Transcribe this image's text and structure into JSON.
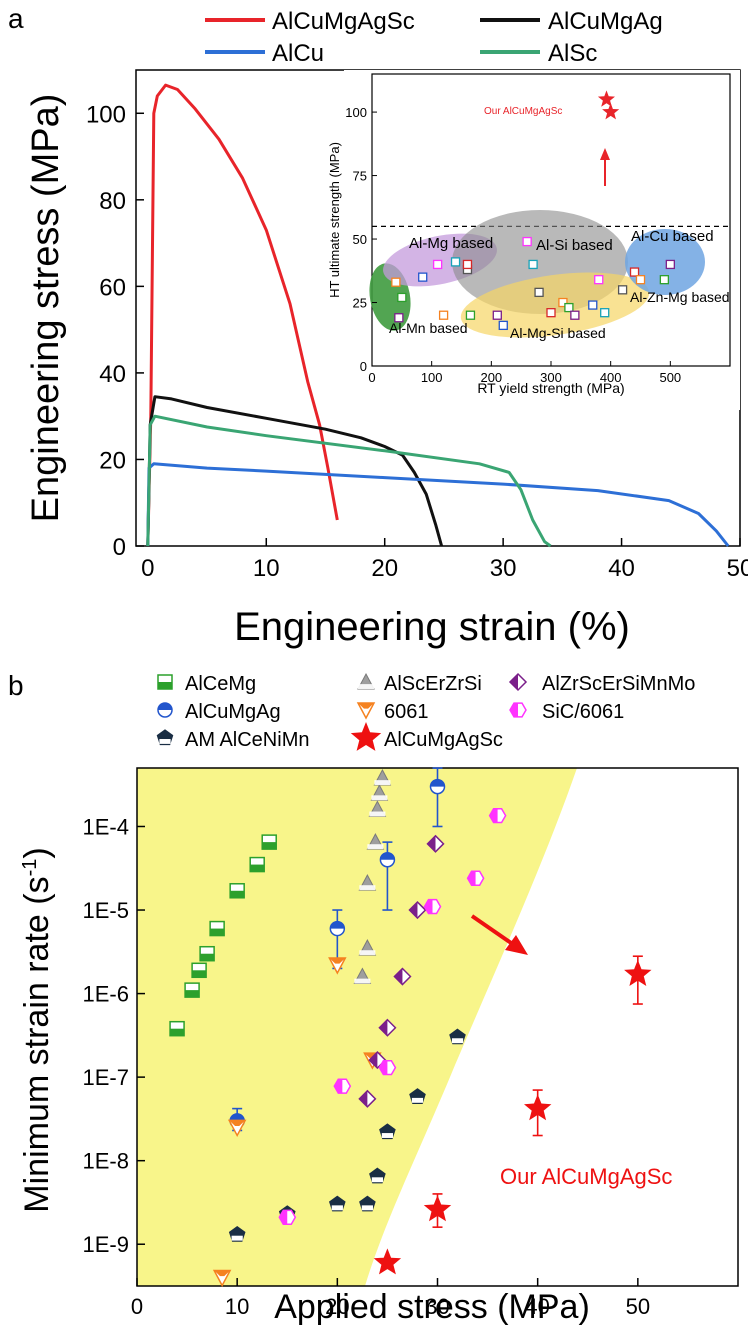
{
  "chart_data": [
    {
      "panel_label": "a",
      "type": "line",
      "xlabel": "Engineering strain (%)",
      "ylabel": "Engineering stress (MPa)",
      "xlim": [
        -1,
        50
      ],
      "ylim": [
        0,
        110
      ],
      "xticks": [
        "0",
        "10",
        "20",
        "30",
        "40",
        "50"
      ],
      "yticks": [
        "0",
        "20",
        "40",
        "60",
        "80",
        "100"
      ],
      "legend_position": "top",
      "series": [
        {
          "name": "AlCuMgAgSc",
          "color": "#e8242a",
          "points": [
            [
              0,
              0
            ],
            [
              0.25,
              30
            ],
            [
              0.5,
              100
            ],
            [
              0.8,
              104
            ],
            [
              1.5,
              106.5
            ],
            [
              2.5,
              105.5
            ],
            [
              4,
              101
            ],
            [
              6,
              94
            ],
            [
              8,
              85
            ],
            [
              10,
              73
            ],
            [
              12,
              56
            ],
            [
              13.5,
              38
            ],
            [
              14.5,
              28
            ],
            [
              15.2,
              18
            ],
            [
              16,
              6
            ]
          ]
        },
        {
          "name": "AlCuMgAg",
          "color": "#111111",
          "points": [
            [
              0,
              0
            ],
            [
              0.2,
              28
            ],
            [
              0.6,
              34.5
            ],
            [
              2,
              34
            ],
            [
              5,
              32
            ],
            [
              10,
              29.5
            ],
            [
              15,
              27
            ],
            [
              18,
              25
            ],
            [
              20,
              23
            ],
            [
              21.5,
              21
            ],
            [
              22.5,
              17
            ],
            [
              23.5,
              12
            ],
            [
              24.3,
              5
            ],
            [
              24.8,
              0
            ]
          ]
        },
        {
          "name": "AlCu",
          "color": "#2d6fd6",
          "points": [
            [
              0,
              0
            ],
            [
              0.1,
              18
            ],
            [
              0.5,
              19
            ],
            [
              5,
              18
            ],
            [
              10,
              17.3
            ],
            [
              20,
              15.8
            ],
            [
              30,
              14.3
            ],
            [
              38,
              12.8
            ],
            [
              44,
              10.5
            ],
            [
              46.5,
              7.5
            ],
            [
              48,
              3.5
            ],
            [
              49,
              0
            ]
          ]
        },
        {
          "name": "AlSc",
          "color": "#3aa573",
          "points": [
            [
              0,
              0
            ],
            [
              0.2,
              28
            ],
            [
              0.6,
              30
            ],
            [
              5,
              27.5
            ],
            [
              10,
              25.5
            ],
            [
              20,
              22
            ],
            [
              28,
              19
            ],
            [
              30.5,
              17
            ],
            [
              31.5,
              13
            ],
            [
              32.5,
              6
            ],
            [
              33.5,
              1
            ],
            [
              34,
              0
            ]
          ]
        }
      ]
    },
    {
      "panel_label": "inset",
      "type": "scatter",
      "xlabel": "RT yield strength (MPa)",
      "ylabel": "HT ultimate strength (MPa)",
      "xlim": [
        0,
        600
      ],
      "ylim": [
        0,
        115
      ],
      "xticks": [
        "0",
        "100",
        "200",
        "300",
        "400",
        "500"
      ],
      "yticks": [
        "0",
        "25",
        "50",
        "75",
        "100"
      ],
      "dashed_line_y": 55,
      "highlight_label": "Our AlCuMgAgSc",
      "highlight_points": [
        [
          393,
          105
        ],
        [
          400,
          100
        ]
      ],
      "group_labels": [
        "Al-Mg based",
        "Al-Si based",
        "Al-Cu based",
        "Al-Zn-Mg based",
        "Al-Mn based",
        "Al-Mg-Si based"
      ],
      "points": [
        [
          40,
          33
        ],
        [
          50,
          27
        ],
        [
          45,
          19
        ],
        [
          85,
          35
        ],
        [
          110,
          40
        ],
        [
          140,
          41
        ],
        [
          160,
          38
        ],
        [
          160,
          40
        ],
        [
          120,
          20
        ],
        [
          165,
          20
        ],
        [
          210,
          20
        ],
        [
          220,
          16
        ],
        [
          260,
          49
        ],
        [
          270,
          40
        ],
        [
          280,
          29
        ],
        [
          300,
          21
        ],
        [
          320,
          25
        ],
        [
          330,
          23
        ],
        [
          340,
          20
        ],
        [
          370,
          24
        ],
        [
          380,
          34
        ],
        [
          390,
          21
        ],
        [
          420,
          30
        ],
        [
          440,
          37
        ],
        [
          450,
          34
        ],
        [
          490,
          34
        ],
        [
          500,
          40
        ]
      ]
    },
    {
      "panel_label": "b",
      "type": "scatter",
      "xlabel": "Applied stress (MPa)",
      "ylabel": "Minimum strain rate (s-1)",
      "xlim": [
        0,
        60
      ],
      "ylim_log10": [
        -9.5,
        -3.3
      ],
      "log_y": true,
      "xticks": [
        "0",
        "10",
        "20",
        "30",
        "40",
        "50"
      ],
      "yticks": [
        "1E-9",
        "1E-8",
        "1E-7",
        "1E-6",
        "1E-5",
        "1E-4"
      ],
      "annotation": "Our AlCuMgAgSc",
      "legend_position": "top",
      "series": [
        {
          "name": "AlCeMg",
          "color": "#2ca02c",
          "marker": "square",
          "x": [
            4,
            5.5,
            6.2,
            7,
            8,
            10,
            12,
            13.2
          ],
          "y": [
            3.8e-07,
            1.1e-06,
            1.9e-06,
            3e-06,
            6e-06,
            1.7e-05,
            3.5e-05,
            6.5e-05
          ]
        },
        {
          "name": "AlCuMgAg",
          "color": "#2255cc",
          "marker": "circle",
          "x": [
            10,
            20,
            25,
            30
          ],
          "y": [
            3e-08,
            6e-06,
            4e-05,
            0.0003
          ]
        },
        {
          "name": "AM AlCeNiMn",
          "color": "#1a2e44",
          "marker": "pentagon",
          "x": [
            10,
            15,
            20,
            23,
            24,
            25,
            28,
            32
          ],
          "y": [
            1.3e-09,
            2.3e-09,
            3e-09,
            3e-09,
            6.5e-09,
            2.2e-08,
            5.8e-08,
            3e-07
          ]
        },
        {
          "name": "AlScErZrSi",
          "color": "#9e9e9e",
          "marker": "triangle-up",
          "x": [
            22.5,
            23,
            23,
            23.8,
            24,
            24.2,
            24.5
          ],
          "y": [
            1.6e-06,
            3.5e-06,
            2.1e-05,
            6.5e-05,
            0.00016,
            0.00025,
            0.00038
          ]
        },
        {
          "name": "6061",
          "color": "#f58220",
          "marker": "triangle-down",
          "x": [
            8.5,
            10,
            20,
            23.5
          ],
          "y": [
            4e-10,
            2.5e-08,
            2.2e-06,
            1.6e-07
          ]
        },
        {
          "name": "AlZrScErSiMnMo",
          "color": "#7b1f8a",
          "marker": "diamond",
          "x": [
            23,
            24,
            25,
            26.5,
            28,
            29.8
          ],
          "y": [
            5.5e-08,
            1.6e-07,
            3.9e-07,
            1.6e-06,
            1e-05,
            6.2e-05
          ]
        },
        {
          "name": "SiC/6061",
          "color": "#ff33ff",
          "marker": "hexagon",
          "x": [
            15,
            20.5,
            25,
            29.5,
            33.8,
            36
          ],
          "y": [
            2.1e-09,
            7.8e-08,
            1.3e-07,
            1.1e-05,
            2.4e-05,
            0.000135
          ]
        },
        {
          "name": "AlCuMgAgSc",
          "color": "#ee1111",
          "marker": "star",
          "x": [
            25,
            30,
            40,
            50
          ],
          "y": [
            6e-10,
            2.6e-09,
            4.2e-08,
            1.7e-06
          ]
        }
      ]
    }
  ]
}
